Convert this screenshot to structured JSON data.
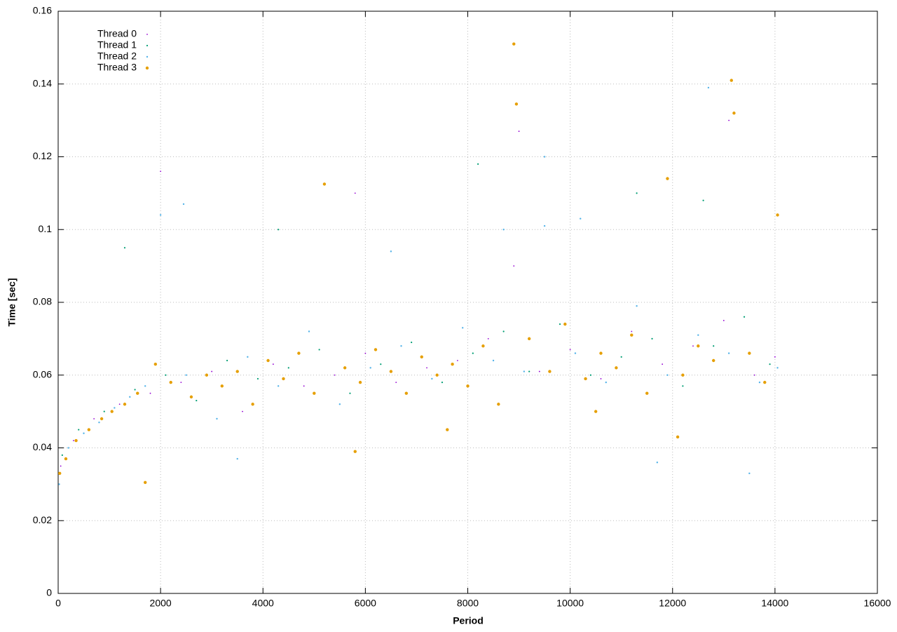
{
  "chart_data": {
    "type": "scatter",
    "x_label": "Period",
    "y_label": "Time [sec]",
    "xlim": [
      0,
      16000
    ],
    "ylim": [
      0,
      0.16
    ],
    "xticks": [
      0,
      2000,
      4000,
      6000,
      8000,
      10000,
      12000,
      14000,
      16000
    ],
    "yticks": [
      0,
      0.02,
      0.04,
      0.06,
      0.08,
      0.1,
      0.12,
      0.14,
      0.16
    ],
    "grid": true,
    "legend": "top-left",
    "series": [
      {
        "name": "Thread 0",
        "color": "#9400d3",
        "x": [
          50,
          300,
          700,
          1200,
          1800,
          2400,
          3000,
          3600,
          4200,
          4800,
          5400,
          6000,
          6600,
          7200,
          7800,
          8400,
          8900,
          9400,
          10000,
          10600,
          11200,
          11800,
          12400,
          13000,
          13600,
          14000,
          2000,
          5800,
          9000,
          13100
        ],
        "values": [
          0.035,
          0.042,
          0.048,
          0.052,
          0.055,
          0.058,
          0.061,
          0.05,
          0.063,
          0.057,
          0.06,
          0.066,
          0.058,
          0.062,
          0.064,
          0.07,
          0.09,
          0.061,
          0.067,
          0.059,
          0.072,
          0.063,
          0.068,
          0.075,
          0.06,
          0.065,
          0.116,
          0.11,
          0.127,
          0.13
        ]
      },
      {
        "name": "Thread 1",
        "color": "#009e73",
        "x": [
          80,
          400,
          900,
          1500,
          2100,
          2700,
          3300,
          3900,
          4500,
          5100,
          5700,
          6300,
          6900,
          7500,
          8100,
          8700,
          9200,
          9800,
          10400,
          11000,
          11600,
          12200,
          12800,
          13400,
          13900,
          1300,
          4300,
          8200,
          11300,
          12600
        ],
        "values": [
          0.038,
          0.045,
          0.05,
          0.056,
          0.06,
          0.053,
          0.064,
          0.059,
          0.062,
          0.067,
          0.055,
          0.063,
          0.069,
          0.058,
          0.066,
          0.072,
          0.061,
          0.074,
          0.06,
          0.065,
          0.07,
          0.057,
          0.068,
          0.076,
          0.063,
          0.095,
          0.1,
          0.118,
          0.11,
          0.108
        ]
      },
      {
        "name": "Thread 2",
        "color": "#56b4e9",
        "x": [
          20,
          200,
          500,
          800,
          1100,
          1400,
          1700,
          2000,
          2500,
          3100,
          3700,
          4300,
          4900,
          5500,
          6100,
          6700,
          7300,
          7900,
          8500,
          9100,
          9500,
          10100,
          10700,
          11300,
          11900,
          12500,
          12700,
          13100,
          13700,
          14050,
          2450,
          6500,
          9500,
          11700,
          13500,
          3500,
          8700,
          10200
        ],
        "values": [
          0.03,
          0.04,
          0.044,
          0.047,
          0.051,
          0.054,
          0.057,
          0.104,
          0.06,
          0.048,
          0.065,
          0.057,
          0.072,
          0.052,
          0.062,
          0.068,
          0.059,
          0.073,
          0.064,
          0.061,
          0.12,
          0.066,
          0.058,
          0.079,
          0.06,
          0.071,
          0.139,
          0.066,
          0.058,
          0.062,
          0.107,
          0.094,
          0.101,
          0.036,
          0.033,
          0.037,
          0.1,
          0.103
        ]
      },
      {
        "name": "Thread 3",
        "color": "#e69f00",
        "x": [
          30,
          150,
          350,
          600,
          850,
          1050,
          1300,
          1550,
          1700,
          1900,
          2200,
          2600,
          2900,
          3200,
          3500,
          3800,
          4100,
          4400,
          4700,
          5000,
          5200,
          5600,
          5900,
          6200,
          6500,
          6800,
          7100,
          7400,
          7700,
          8000,
          8300,
          8600,
          8900,
          8950,
          9200,
          9600,
          9900,
          10300,
          10600,
          10900,
          11200,
          11500,
          11900,
          12200,
          12500,
          12800,
          13150,
          13200,
          13500,
          13800,
          14050,
          5800,
          7600,
          10500,
          12100
        ],
        "values": [
          0.033,
          0.037,
          0.042,
          0.045,
          0.048,
          0.05,
          0.052,
          0.055,
          0.0305,
          0.063,
          0.058,
          0.054,
          0.06,
          0.057,
          0.061,
          0.052,
          0.064,
          0.059,
          0.066,
          0.055,
          0.1125,
          0.062,
          0.058,
          0.067,
          0.061,
          0.055,
          0.065,
          0.06,
          0.063,
          0.057,
          0.068,
          0.052,
          0.151,
          0.1345,
          0.07,
          0.061,
          0.074,
          0.059,
          0.066,
          0.062,
          0.071,
          0.055,
          0.114,
          0.06,
          0.068,
          0.064,
          0.141,
          0.132,
          0.066,
          0.058,
          0.104,
          0.039,
          0.045,
          0.05,
          0.043
        ]
      }
    ]
  }
}
